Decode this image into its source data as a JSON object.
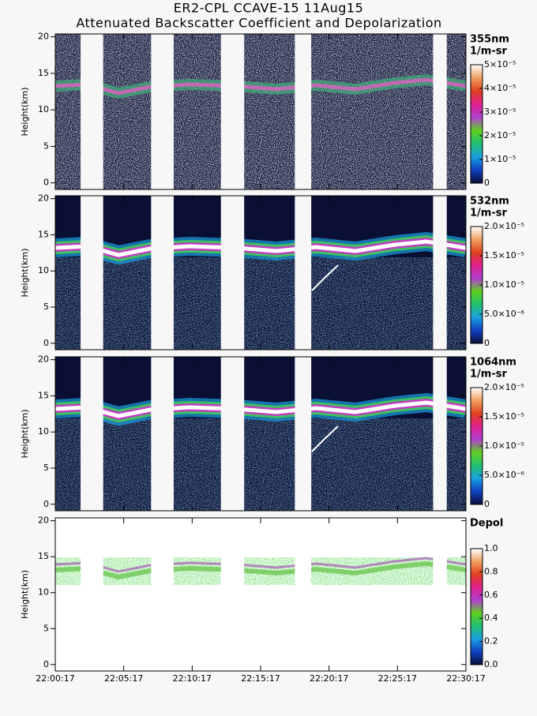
{
  "chart_data": [
    {
      "type": "heatmap",
      "title": "ER2-CPL CCAVE-15 11Aug15",
      "subtitle": "Attenuated Backscatter Coefficient and Depolarization",
      "ylabel": "Height(km)",
      "ylim": [
        -0.9,
        20.4
      ],
      "yticks": [
        0,
        5,
        10,
        15,
        20
      ],
      "xlim": [
        0,
        30
      ],
      "no_data": [
        [
          1.85,
          3.5
        ],
        [
          7.0,
          8.65
        ],
        [
          12.1,
          13.8
        ],
        [
          17.5,
          18.7
        ],
        [
          27.6,
          28.6
        ]
      ],
      "colorbar": {
        "label": "355nm",
        "units": "1/m-sr",
        "lim": [
          0,
          5e-05
        ],
        "ticks": [
          0,
          {
            "value": 1e-05,
            "label": "1×10⁻⁵"
          },
          {
            "value": 2e-05,
            "label": "2×10⁻⁵"
          },
          {
            "value": 3e-05,
            "label": "3×10⁻⁵"
          },
          {
            "value": 4e-05,
            "label": "4×10⁻⁵"
          },
          {
            "value": 5e-05,
            "label": "5×10⁻⁵"
          }
        ],
        "colormap": [
          "#0a0f3a",
          "#1040c0",
          "#1aa0e0",
          "#20c070",
          "#60d020",
          "#b040d0",
          "#e02090",
          "#e04020",
          "#f0a060",
          "#ffffff"
        ]
      }
    },
    {
      "type": "heatmap",
      "ylabel": "Height(km)",
      "ylim": [
        -0.9,
        20.4
      ],
      "yticks": [
        0,
        5,
        10,
        15,
        20
      ],
      "xlim": [
        0,
        30
      ],
      "no_data": [
        [
          1.85,
          3.5
        ],
        [
          7.0,
          8.65
        ],
        [
          12.1,
          13.8
        ],
        [
          17.5,
          18.7
        ],
        [
          27.6,
          28.6
        ]
      ],
      "colorbar": {
        "label": "532nm",
        "units": "1/m-sr",
        "lim": [
          0,
          2e-05
        ],
        "ticks": [
          0,
          {
            "value": 5e-06,
            "label": "5.0×10⁻⁶"
          },
          {
            "value": 1e-05,
            "label": "1.0×10⁻⁵"
          },
          {
            "value": 1.5e-05,
            "label": "1.5×10⁻⁵"
          },
          {
            "value": 2e-05,
            "label": "2.0×10⁻⁵"
          }
        ],
        "colormap": [
          "#0a0f3a",
          "#1040c0",
          "#1aa0e0",
          "#20c070",
          "#60d020",
          "#b040d0",
          "#e02090",
          "#e04020",
          "#f0a060",
          "#ffffff"
        ]
      }
    },
    {
      "type": "heatmap",
      "ylabel": "Height(km)",
      "ylim": [
        -0.9,
        20.4
      ],
      "yticks": [
        0,
        5,
        10,
        15,
        20
      ],
      "xlim": [
        0,
        30
      ],
      "no_data": [
        [
          1.85,
          3.5
        ],
        [
          7.0,
          8.65
        ],
        [
          12.1,
          13.8
        ],
        [
          17.5,
          18.7
        ],
        [
          27.6,
          28.6
        ]
      ],
      "colorbar": {
        "label": "1064nm",
        "units": "1/m-sr",
        "lim": [
          0,
          2e-05
        ],
        "ticks": [
          0,
          {
            "value": 5e-06,
            "label": "5.0×10⁻⁶"
          },
          {
            "value": 1e-05,
            "label": "1.0×10⁻⁵"
          },
          {
            "value": 1.5e-05,
            "label": "1.5×10⁻⁵"
          },
          {
            "value": 2e-05,
            "label": "2.0×10⁻⁵"
          }
        ],
        "colormap": [
          "#0a0f3a",
          "#1040c0",
          "#1aa0e0",
          "#20c070",
          "#60d020",
          "#b040d0",
          "#e02090",
          "#e04020",
          "#f0a060",
          "#ffffff"
        ]
      }
    },
    {
      "type": "heatmap",
      "ylabel": "Height(km)",
      "ylim": [
        -0.9,
        20.4
      ],
      "yticks": [
        0,
        5,
        10,
        15,
        20
      ],
      "xlim": [
        0,
        30
      ],
      "no_data": [
        [
          1.85,
          3.5
        ],
        [
          7.0,
          8.65
        ],
        [
          12.1,
          13.8
        ],
        [
          17.5,
          18.7
        ],
        [
          27.6,
          28.6
        ]
      ],
      "xticks": [
        {
          "value": 0,
          "label": "22:00:17"
        },
        {
          "value": 5,
          "label": "22:05:17"
        },
        {
          "value": 10,
          "label": "22:10:17"
        },
        {
          "value": 15,
          "label": "22:15:17"
        },
        {
          "value": 20,
          "label": "22:20:17"
        },
        {
          "value": 25,
          "label": "22:25:17"
        },
        {
          "value": 30,
          "label": "22:30:17"
        }
      ],
      "colorbar": {
        "label": "Depol",
        "lim": [
          0,
          1
        ],
        "ticks": [
          {
            "value": 0,
            "label": "0.0"
          },
          0.2,
          0.4,
          0.6,
          0.8,
          {
            "value": 1,
            "label": "1.0"
          }
        ],
        "colormap": [
          "#0a0f3a",
          "#1040c0",
          "#1aa0e0",
          "#20c070",
          "#60d020",
          "#b040d0",
          "#e02090",
          "#e04020",
          "#f0a060",
          "#ffffff"
        ]
      }
    }
  ]
}
